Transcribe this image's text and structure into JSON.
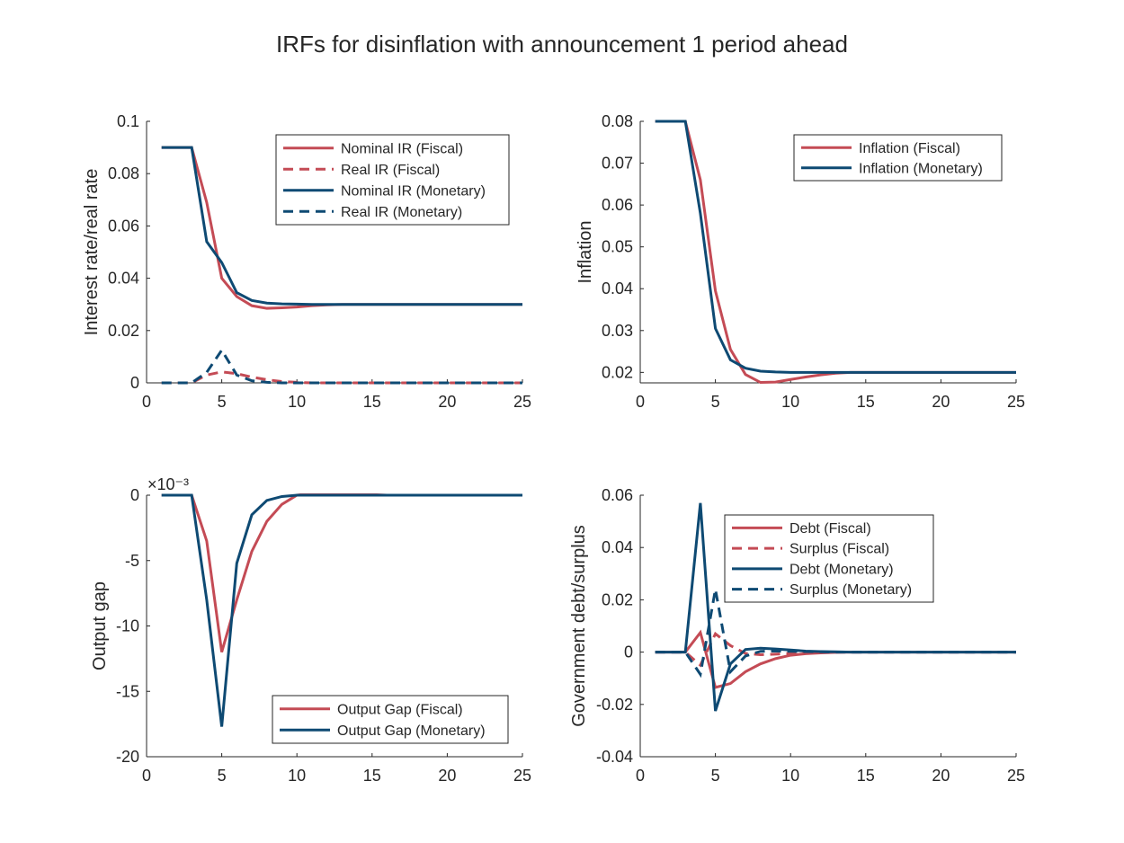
{
  "title": "IRFs for disinflation with announcement 1 period ahead",
  "colors": {
    "fiscal": "#c44b55",
    "monetary": "#0e4a73",
    "axis": "#262626"
  },
  "chart_data": [
    {
      "type": "line",
      "xlabel": "",
      "ylabel": "Interest rate/real rate",
      "xlim": [
        0,
        25
      ],
      "ylim": [
        0,
        0.1
      ],
      "xticks": [
        "0",
        "5",
        "10",
        "15",
        "20",
        "25"
      ],
      "yticks": [
        "0",
        "0.02",
        "0.04",
        "0.06",
        "0.08",
        "0.1"
      ],
      "legend_position": "top-right",
      "x": [
        1,
        2,
        3,
        4,
        5,
        6,
        7,
        8,
        9,
        10,
        11,
        12,
        13,
        14,
        15,
        16,
        17,
        18,
        19,
        20,
        21,
        22,
        23,
        24,
        25
      ],
      "series": [
        {
          "name": "Nominal IR (Fiscal)",
          "color": "fiscal",
          "dashed": false,
          "values": [
            0.09,
            0.09,
            0.09,
            0.069,
            0.04,
            0.033,
            0.0295,
            0.0285,
            0.0287,
            0.029,
            0.0295,
            0.0298,
            0.03,
            0.03,
            0.03,
            0.03,
            0.03,
            0.03,
            0.03,
            0.03,
            0.03,
            0.03,
            0.03,
            0.03,
            0.03
          ]
        },
        {
          "name": "Real IR (Fiscal)",
          "color": "fiscal",
          "dashed": true,
          "values": [
            0,
            0,
            0,
            0.003,
            0.0042,
            0.0035,
            0.0022,
            0.0012,
            0.0005,
            0.0002,
            0,
            0,
            0,
            0,
            0,
            0,
            0,
            0,
            0,
            0,
            0,
            0,
            0,
            0,
            0
          ]
        },
        {
          "name": "Nominal IR (Monetary)",
          "color": "monetary",
          "dashed": false,
          "values": [
            0.09,
            0.09,
            0.09,
            0.054,
            0.046,
            0.0345,
            0.0315,
            0.0305,
            0.0302,
            0.0301,
            0.03,
            0.03,
            0.03,
            0.03,
            0.03,
            0.03,
            0.03,
            0.03,
            0.03,
            0.03,
            0.03,
            0.03,
            0.03,
            0.03,
            0.03
          ]
        },
        {
          "name": "Real IR (Monetary)",
          "color": "monetary",
          "dashed": true,
          "values": [
            0,
            0,
            0,
            0.004,
            0.0125,
            0.003,
            0.0008,
            0.0002,
            0,
            0,
            0,
            0,
            0,
            0,
            0,
            0,
            0,
            0,
            0,
            0,
            0,
            0,
            0,
            0,
            0
          ]
        }
      ]
    },
    {
      "type": "line",
      "xlabel": "",
      "ylabel": "Inflation",
      "xlim": [
        0,
        25
      ],
      "ylim": [
        0.0175,
        0.08
      ],
      "xticks": [
        "0",
        "5",
        "10",
        "15",
        "20",
        "25"
      ],
      "yticks": [
        "0.02",
        "0.03",
        "0.04",
        "0.05",
        "0.06",
        "0.07",
        "0.08"
      ],
      "legend_position": "top-right",
      "x": [
        1,
        2,
        3,
        4,
        5,
        6,
        7,
        8,
        9,
        10,
        11,
        12,
        13,
        14,
        15,
        16,
        17,
        18,
        19,
        20,
        21,
        22,
        23,
        24,
        25
      ],
      "series": [
        {
          "name": "Inflation (Fiscal)",
          "color": "fiscal",
          "dashed": false,
          "values": [
            0.08,
            0.08,
            0.08,
            0.066,
            0.0395,
            0.0255,
            0.0195,
            0.0176,
            0.0177,
            0.0183,
            0.0189,
            0.0194,
            0.0198,
            0.02,
            0.02,
            0.02,
            0.02,
            0.02,
            0.02,
            0.02,
            0.02,
            0.02,
            0.02,
            0.02,
            0.02
          ]
        },
        {
          "name": "Inflation (Monetary)",
          "color": "monetary",
          "dashed": false,
          "values": [
            0.08,
            0.08,
            0.08,
            0.058,
            0.0305,
            0.023,
            0.021,
            0.0203,
            0.0201,
            0.02,
            0.02,
            0.02,
            0.02,
            0.02,
            0.02,
            0.02,
            0.02,
            0.02,
            0.02,
            0.02,
            0.02,
            0.02,
            0.02,
            0.02,
            0.02
          ]
        }
      ]
    },
    {
      "type": "line",
      "xlabel": "",
      "ylabel": "Output gap",
      "y_exponent": "×10⁻³",
      "xlim": [
        0,
        25
      ],
      "ylim": [
        -20,
        0
      ],
      "xticks": [
        "0",
        "5",
        "10",
        "15",
        "20",
        "25"
      ],
      "yticks": [
        "-20",
        "-15",
        "-10",
        "-5",
        "0"
      ],
      "legend_position": "bottom-right",
      "x": [
        1,
        2,
        3,
        4,
        5,
        6,
        7,
        8,
        9,
        10,
        11,
        12,
        13,
        14,
        15,
        16,
        17,
        18,
        19,
        20,
        21,
        22,
        23,
        24,
        25
      ],
      "series": [
        {
          "name": "Output Gap (Fiscal)",
          "color": "fiscal",
          "dashed": false,
          "values": [
            0,
            0,
            0,
            -3.5,
            -12,
            -8,
            -4.3,
            -2,
            -0.7,
            0,
            0.15,
            0.2,
            0.15,
            0.1,
            0.05,
            0,
            0,
            0,
            0,
            0,
            0,
            0,
            0,
            0,
            0
          ]
        },
        {
          "name": "Output Gap (Monetary)",
          "color": "monetary",
          "dashed": false,
          "values": [
            0,
            0,
            0,
            -8,
            -17.7,
            -5.2,
            -1.5,
            -0.4,
            -0.1,
            0,
            0,
            0,
            0,
            0,
            0,
            0,
            0,
            0,
            0,
            0,
            0,
            0,
            0,
            0,
            0
          ]
        }
      ]
    },
    {
      "type": "line",
      "xlabel": "",
      "ylabel": "Government debt/surplus",
      "xlim": [
        0,
        25
      ],
      "ylim": [
        -0.04,
        0.06
      ],
      "xticks": [
        "0",
        "5",
        "10",
        "15",
        "20",
        "25"
      ],
      "yticks": [
        "-0.04",
        "-0.02",
        "0",
        "0.02",
        "0.04",
        "0.06"
      ],
      "legend_position": "top-right",
      "x": [
        1,
        2,
        3,
        4,
        5,
        6,
        7,
        8,
        9,
        10,
        11,
        12,
        13,
        14,
        15,
        16,
        17,
        18,
        19,
        20,
        21,
        22,
        23,
        24,
        25
      ],
      "series": [
        {
          "name": "Debt (Fiscal)",
          "color": "fiscal",
          "dashed": false,
          "values": [
            0,
            0,
            0,
            0.0075,
            -0.0135,
            -0.012,
            -0.0075,
            -0.0045,
            -0.0025,
            -0.0012,
            -0.0006,
            -0.0003,
            -0.0001,
            0,
            0,
            0,
            0,
            0,
            0,
            0,
            0,
            0,
            0,
            0,
            0
          ]
        },
        {
          "name": "Surplus (Fiscal)",
          "color": "fiscal",
          "dashed": true,
          "values": [
            0,
            0,
            0,
            -0.005,
            0.007,
            0.0025,
            -0.0005,
            -0.001,
            -0.0008,
            -0.0005,
            -0.0003,
            -0.0001,
            0,
            0,
            0,
            0,
            0,
            0,
            0,
            0,
            0,
            0,
            0,
            0,
            0
          ]
        },
        {
          "name": "Debt (Monetary)",
          "color": "monetary",
          "dashed": false,
          "values": [
            0,
            0,
            0,
            0.057,
            -0.0225,
            -0.0045,
            0.001,
            0.0015,
            0.0012,
            0.0008,
            0.0004,
            0.0002,
            0.0001,
            0,
            0,
            0,
            0,
            0,
            0,
            0,
            0,
            0,
            0,
            0,
            0
          ]
        },
        {
          "name": "Surplus (Monetary)",
          "color": "monetary",
          "dashed": true,
          "values": [
            0,
            0,
            0,
            -0.0085,
            0.024,
            -0.0075,
            -0.0015,
            0.0003,
            0.0004,
            0.0003,
            0.0002,
            0.0001,
            0,
            0,
            0,
            0,
            0,
            0,
            0,
            0,
            0,
            0,
            0,
            0,
            0
          ]
        }
      ]
    }
  ]
}
